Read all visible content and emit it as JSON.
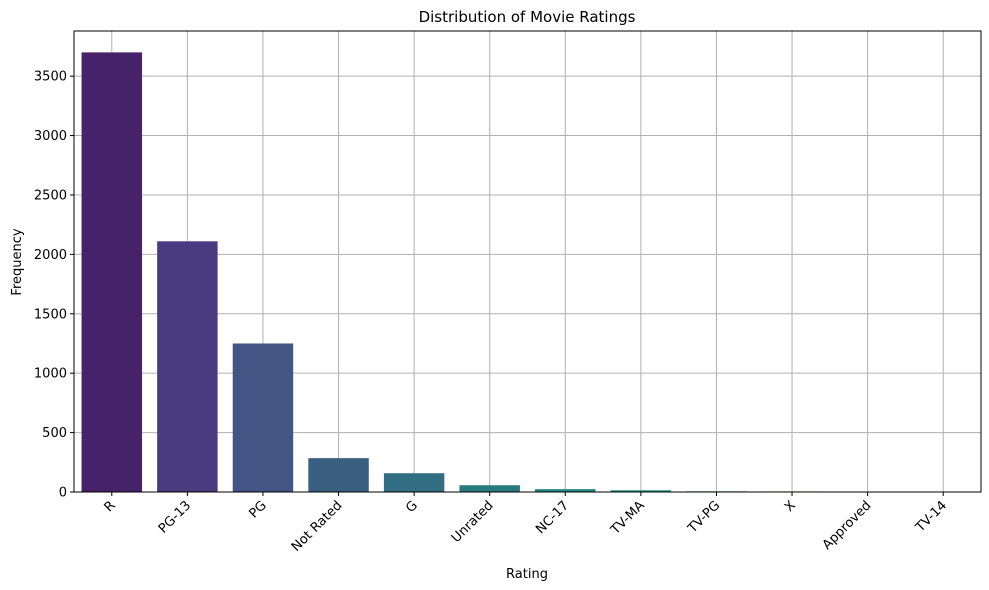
{
  "chart_data": {
    "type": "bar",
    "title": "Distribution of Movie Ratings",
    "xlabel": "Rating",
    "ylabel": "Frequency",
    "categories": [
      "R",
      "PG-13",
      "PG",
      "Not Rated",
      "G",
      "Unrated",
      "NC-17",
      "TV-MA",
      "TV-PG",
      "X",
      "Approved",
      "TV-14"
    ],
    "values": [
      3700,
      2110,
      1250,
      285,
      158,
      57,
      24,
      15,
      6,
      5,
      4,
      4
    ],
    "colors": [
      "#46226a",
      "#4a3a80",
      "#435585",
      "#3a5f80",
      "#326e83",
      "#297a7e",
      "#22887e",
      "#2a9178",
      "#4aa96c",
      "#7ec65a",
      "#b5d84e",
      "#f1e663"
    ],
    "ylim": [
      0,
      3880
    ],
    "yticks": [
      0,
      500,
      1000,
      1500,
      2000,
      2500,
      3000,
      3500
    ],
    "grid": true
  }
}
